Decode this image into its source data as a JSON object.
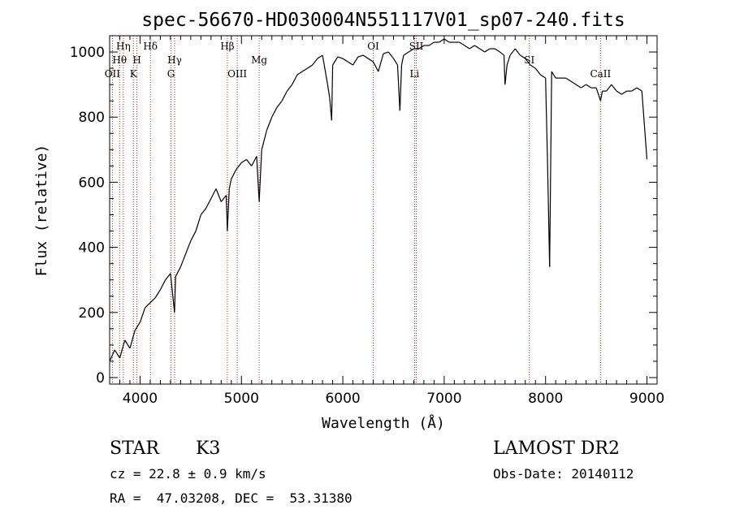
{
  "chart_data": {
    "type": "line",
    "title": "spec-56670-HD030004N551117V01_sp07-240.fits",
    "xlabel": "Wavelength (Å)",
    "ylabel": "Flux (relative)",
    "xlim": [
      3700,
      9100
    ],
    "ylim": [
      -20,
      1050
    ],
    "x_ticks": [
      4000,
      5000,
      6000,
      7000,
      8000,
      9000
    ],
    "y_ticks": [
      0,
      200,
      400,
      600,
      800,
      1000
    ],
    "grid": false,
    "series": [
      {
        "x": [
          3700,
          3750,
          3800,
          3850,
          3900,
          3950,
          4000,
          4050,
          4100,
          4150,
          4200,
          4250,
          4300,
          4340,
          4350,
          4400,
          4450,
          4500,
          4550,
          4600,
          4650,
          4700,
          4750,
          4800,
          4850,
          4861,
          4880,
          4900,
          4950,
          5000,
          5050,
          5100,
          5150,
          5175,
          5200,
          5250,
          5300,
          5350,
          5400,
          5450,
          5500,
          5550,
          5600,
          5650,
          5700,
          5750,
          5800,
          5850,
          5870,
          5890,
          5900,
          5950,
          6000,
          6050,
          6100,
          6150,
          6200,
          6250,
          6300,
          6350,
          6400,
          6450,
          6500,
          6540,
          6563,
          6580,
          6600,
          6650,
          6700,
          6750,
          6800,
          6850,
          6900,
          6950,
          7000,
          7050,
          7100,
          7150,
          7200,
          7250,
          7300,
          7350,
          7400,
          7450,
          7500,
          7550,
          7590,
          7600,
          7620,
          7650,
          7700,
          7750,
          7800,
          7850,
          7900,
          7950,
          8000,
          8020,
          8040,
          8060,
          8100,
          8150,
          8200,
          8250,
          8300,
          8350,
          8400,
          8450,
          8500,
          8542,
          8560,
          8600,
          8650,
          8700,
          8750,
          8800,
          8850,
          8900,
          8950,
          9000
        ],
        "y": [
          50,
          85,
          60,
          115,
          90,
          145,
          170,
          215,
          230,
          245,
          270,
          300,
          320,
          200,
          310,
          340,
          380,
          420,
          450,
          500,
          520,
          550,
          580,
          540,
          560,
          450,
          580,
          610,
          640,
          660,
          670,
          650,
          680,
          540,
          700,
          760,
          800,
          830,
          850,
          880,
          900,
          930,
          940,
          950,
          960,
          980,
          990,
          900,
          860,
          790,
          960,
          985,
          980,
          970,
          960,
          985,
          990,
          980,
          970,
          940,
          995,
          1000,
          980,
          960,
          820,
          960,
          990,
          1000,
          1010,
          1010,
          1020,
          1020,
          1030,
          1030,
          1040,
          1030,
          1030,
          1030,
          1020,
          1010,
          1020,
          1010,
          1000,
          1010,
          1010,
          1000,
          990,
          900,
          960,
          990,
          1010,
          990,
          980,
          960,
          950,
          930,
          920,
          650,
          340,
          940,
          920,
          920,
          920,
          910,
          900,
          890,
          900,
          890,
          890,
          850,
          880,
          880,
          900,
          880,
          870,
          880,
          880,
          890,
          880,
          670
        ]
      }
    ],
    "lines": [
      {
        "name": "OII",
        "x": 3727,
        "row": 3
      },
      {
        "name": "Hθ",
        "x": 3798,
        "row": 2
      },
      {
        "name": "Hη",
        "x": 3835,
        "row": 1
      },
      {
        "name": "K",
        "x": 3934,
        "row": 3
      },
      {
        "name": "H",
        "x": 3969,
        "row": 2
      },
      {
        "name": "Hδ",
        "x": 4102,
        "row": 1
      },
      {
        "name": "G",
        "x": 4305,
        "row": 3
      },
      {
        "name": "Hγ",
        "x": 4341,
        "row": 2
      },
      {
        "name": "Hβ",
        "x": 4861,
        "row": 1
      },
      {
        "name": "OIII",
        "x": 4959,
        "row": 3
      },
      {
        "name": "Mg",
        "x": 5175,
        "row": 2
      },
      {
        "name": "OI",
        "x": 6300,
        "row": 1
      },
      {
        "name": "Li",
        "x": 6708,
        "row": 3
      },
      {
        "name": "SII",
        "x": 6725,
        "row": 1
      },
      {
        "name": "SI",
        "x": 7840,
        "row": 2
      },
      {
        "name": "CaII",
        "x": 8542,
        "row": 3
      }
    ]
  },
  "info": {
    "object_class": "STAR",
    "subclass": "K3",
    "survey": "LAMOST DR2",
    "redshift": "cz = 22.8 ± 0.9 km/s",
    "obs_date": "Obs-Date: 20140112",
    "coordinates": "RA =  47.03208, DEC =  53.31380"
  },
  "colors": {
    "line_marker": "#b22222",
    "spectrum": "#000000",
    "axes": "#000000",
    "background": "#ffffff"
  }
}
